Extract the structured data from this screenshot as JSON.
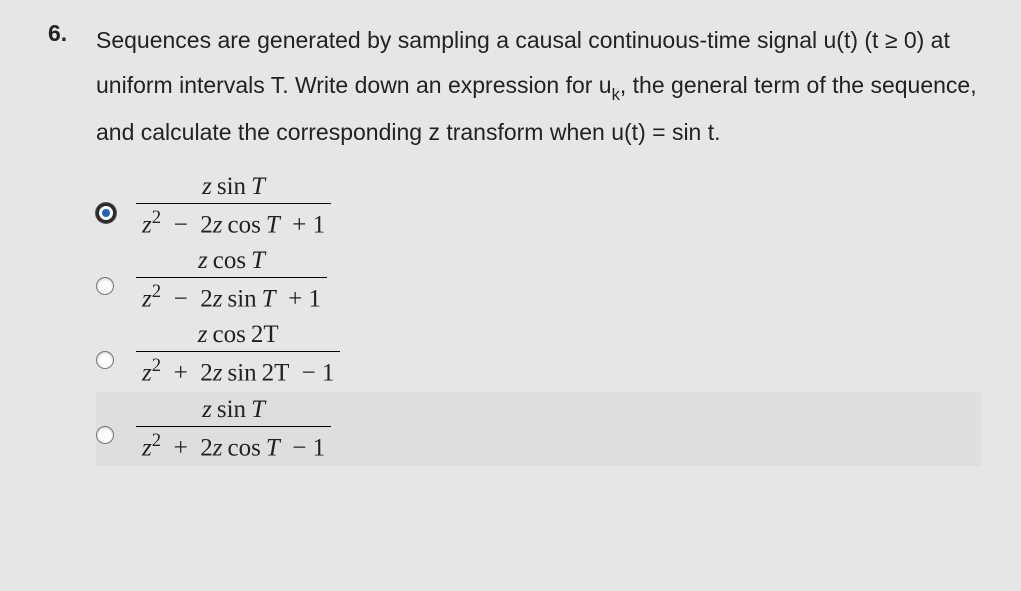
{
  "question": {
    "number": "6.",
    "text_parts": [
      "Sequences are generated by sampling a causal continuous-time signal ",
      "u(t) (t ≥ 0) at uniform intervals T. Write down an expression for u",
      ", the general term of the sequence, and calculate the corresponding z transform when u(t) = sin t."
    ],
    "subscript_k": "k"
  },
  "options": [
    {
      "selected": true,
      "highlight": false,
      "num_pre": "z",
      "num_fn": "sin",
      "num_arg": "T",
      "den_z2": "z",
      "den_exp": "2",
      "den_sign1": "−",
      "den_mid": "2",
      "den_z": "z",
      "den_fn": "cos",
      "den_arg": "T",
      "den_sign2": "+",
      "den_const": "1"
    },
    {
      "selected": false,
      "highlight": false,
      "num_pre": "z",
      "num_fn": "cos",
      "num_arg": "T",
      "den_z2": "z",
      "den_exp": "2",
      "den_sign1": "−",
      "den_mid": "2",
      "den_z": "z",
      "den_fn": "sin",
      "den_arg": "T",
      "den_sign2": "+",
      "den_const": "1"
    },
    {
      "selected": false,
      "highlight": false,
      "num_pre": "z",
      "num_fn": "cos",
      "num_arg": "2T",
      "den_z2": "z",
      "den_exp": "2",
      "den_sign1": "+",
      "den_mid": "2",
      "den_z": "z",
      "den_fn": "sin",
      "den_arg": "2T",
      "den_sign2": "−",
      "den_const": "1"
    },
    {
      "selected": false,
      "highlight": true,
      "num_pre": "z",
      "num_fn": "sin",
      "num_arg": "T",
      "den_z2": "z",
      "den_exp": "2",
      "den_sign1": "+",
      "den_mid": "2",
      "den_z": "z",
      "den_fn": "cos",
      "den_arg": "T",
      "den_sign2": "−",
      "den_const": "1"
    }
  ],
  "colors": {
    "page_bg": "#e6e6e6",
    "highlight_bg": "#dedede",
    "radio_selected_dot": "#1765c4",
    "text": "#222222"
  }
}
